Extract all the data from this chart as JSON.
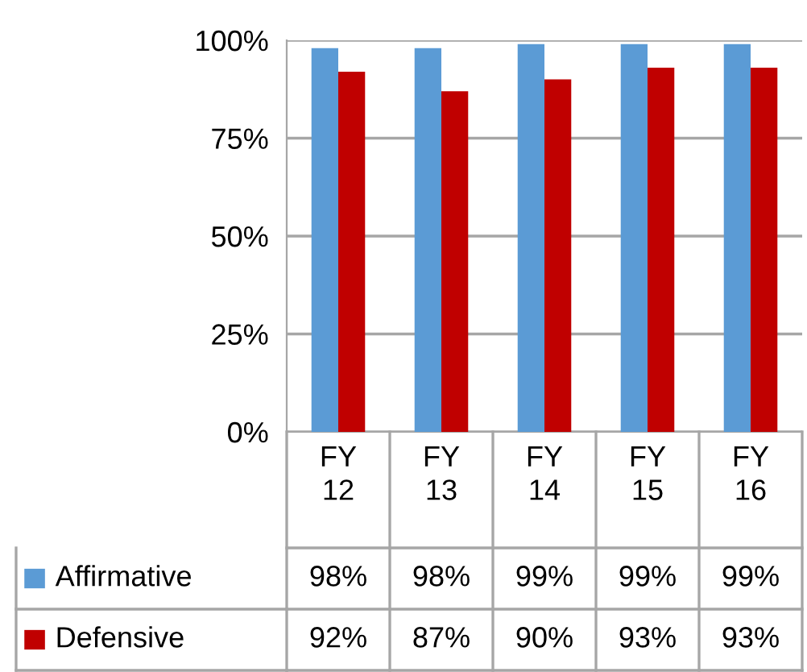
{
  "chart_data": {
    "type": "bar",
    "categories": [
      "FY\n12",
      "FY\n13",
      "FY\n14",
      "FY\n15",
      "FY\n16"
    ],
    "series": [
      {
        "name": "Affirmative",
        "color": "#5b9bd5",
        "values": [
          98,
          98,
          99,
          99,
          99
        ],
        "value_labels": [
          "98%",
          "98%",
          "99%",
          "99%",
          "99%"
        ]
      },
      {
        "name": "Defensive",
        "color": "#c00000",
        "values": [
          92,
          87,
          90,
          93,
          93
        ],
        "value_labels": [
          "92%",
          "87%",
          "90%",
          "93%",
          "93%"
        ]
      }
    ],
    "ylim": [
      0,
      100
    ],
    "yticks": [
      {
        "value": 0,
        "label": "0%"
      },
      {
        "value": 25,
        "label": "25%"
      },
      {
        "value": 50,
        "label": "50%"
      },
      {
        "value": 75,
        "label": "75%"
      },
      {
        "value": 100,
        "label": "100%"
      }
    ],
    "grid": "y",
    "legend": "bottom left",
    "data_labels": true
  }
}
